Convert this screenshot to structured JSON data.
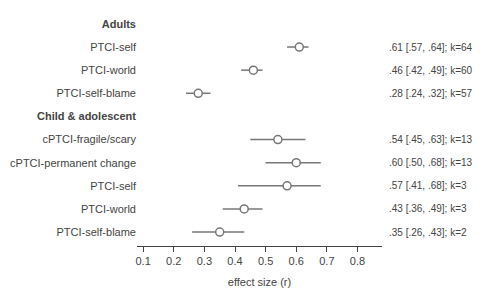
{
  "chart_data": {
    "type": "forest",
    "categories": [
      "Adults",
      "PTCI-self",
      "PTCI-world",
      "PTCI-self-blame",
      "Child & adolescent",
      "cPTCI-fragile/scary",
      "cPTCI-permanent change",
      "PTCI-self",
      "PTCI-world",
      "PTCI-self-blame"
    ],
    "values": [
      null,
      0.61,
      0.46,
      0.28,
      null,
      0.54,
      0.6,
      0.57,
      0.43,
      0.35
    ],
    "lo": [
      null,
      0.57,
      0.42,
      0.24,
      null,
      0.45,
      0.5,
      0.41,
      0.36,
      0.26
    ],
    "hi": [
      null,
      0.64,
      0.49,
      0.32,
      null,
      0.63,
      0.68,
      0.68,
      0.49,
      0.43
    ],
    "annotations": [
      null,
      ".61 [.57, .64]; k=64",
      ".46 [.42, .49]; k=60",
      ".28 [.24, .32]; k=57",
      null,
      ".54 [.45, .63]; k=13",
      ".60 [.50, .68]; k=13",
      ".57 [.41, .68]; k=3",
      ".43 [.36, .49]; k=3",
      ".35 [.26, .43]; k=2"
    ],
    "xlabel": "effect size (r)",
    "xlim": [
      0.08,
      0.88
    ],
    "xticks": [
      0.1,
      0.2,
      0.3,
      0.4,
      0.5,
      0.6,
      0.7,
      0.8
    ],
    "color": "#777777",
    "marker": "circle-open",
    "grid": false
  }
}
